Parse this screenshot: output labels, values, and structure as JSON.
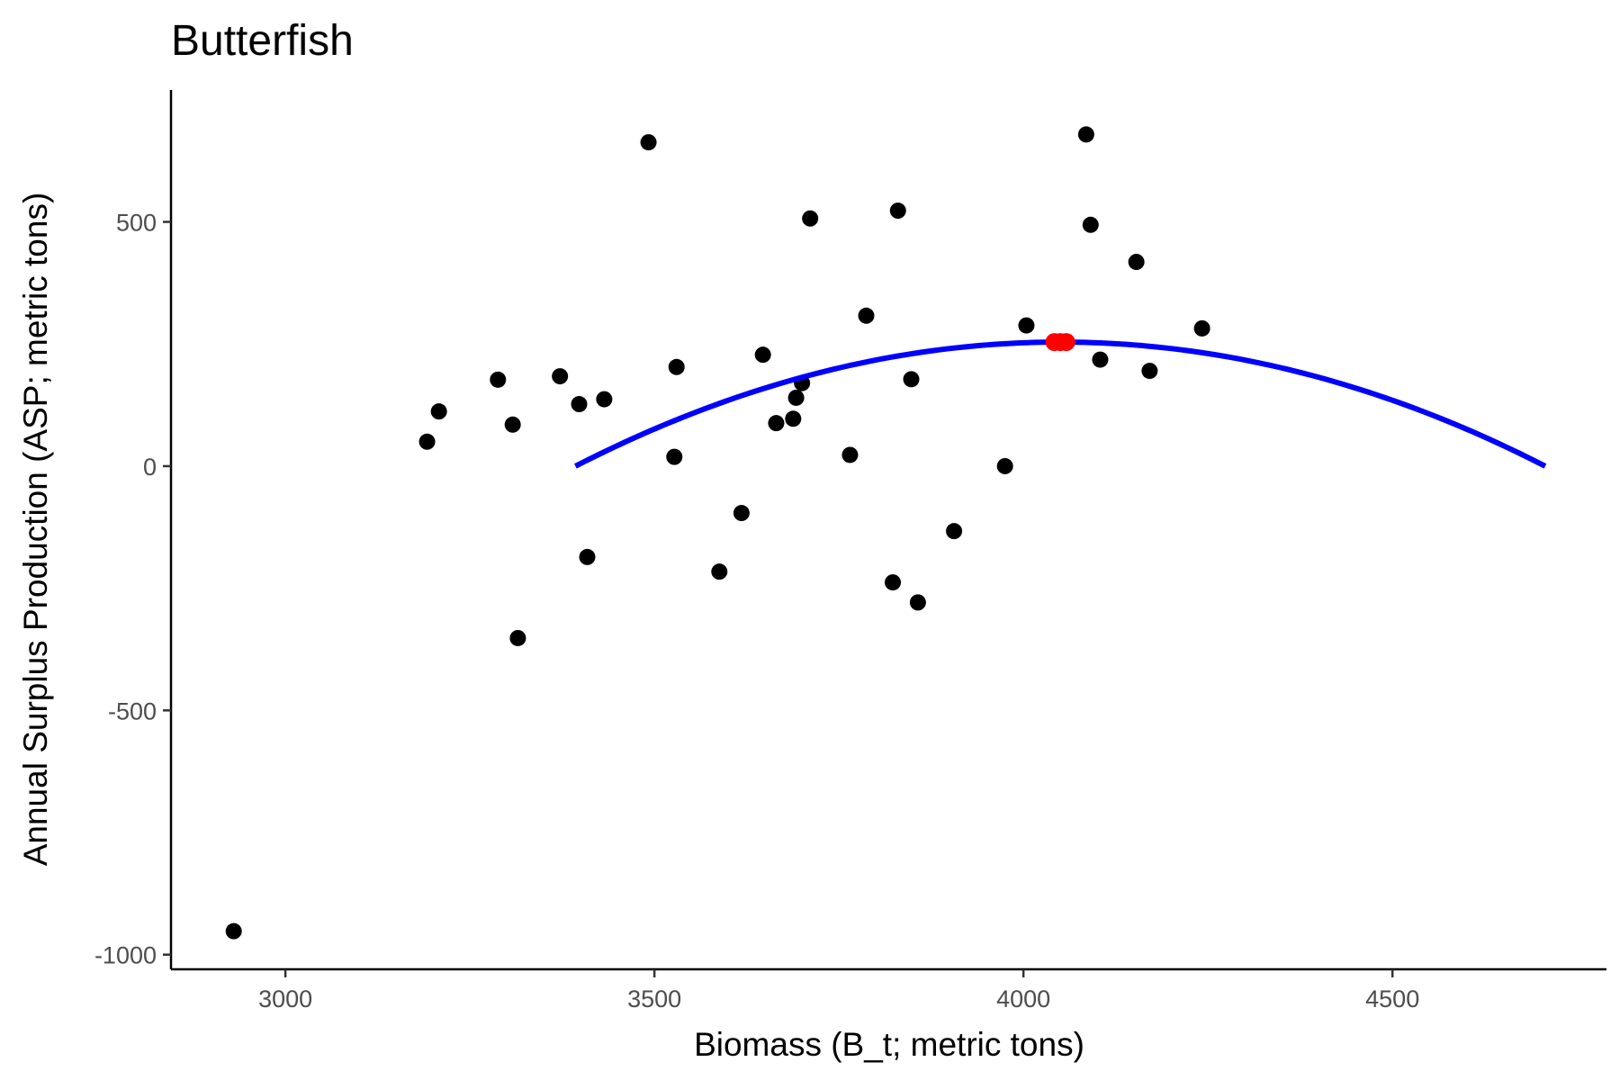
{
  "chart_data": {
    "type": "scatter",
    "title": "Butterfish",
    "xlabel": "Biomass (B_t; metric tons)",
    "ylabel": "Annual Surplus Production (ASP; metric tons)",
    "xlim": [
      2845,
      4790
    ],
    "ylim": [
      -1030,
      770
    ],
    "x_ticks": [
      3000,
      3500,
      4000,
      4500
    ],
    "y_ticks": [
      -1000,
      -500,
      0,
      500
    ],
    "x_tick_labels": [
      "3000",
      "3500",
      "4000",
      "4500"
    ],
    "y_tick_labels": [
      "-1000",
      "-500",
      "0",
      "500"
    ],
    "grid": false,
    "legend": "none",
    "series": [
      {
        "type": "scatter",
        "color": "#000000",
        "points": [
          {
            "x": 2930,
            "y": -952
          },
          {
            "x": 3192,
            "y": 50
          },
          {
            "x": 3208,
            "y": 112
          },
          {
            "x": 3288,
            "y": 177
          },
          {
            "x": 3308,
            "y": 85
          },
          {
            "x": 3315,
            "y": -352
          },
          {
            "x": 3372,
            "y": 184
          },
          {
            "x": 3398,
            "y": 127
          },
          {
            "x": 3409,
            "y": -186
          },
          {
            "x": 3432,
            "y": 137
          },
          {
            "x": 3492,
            "y": 663
          },
          {
            "x": 3527,
            "y": 19
          },
          {
            "x": 3530,
            "y": 203
          },
          {
            "x": 3588,
            "y": -216
          },
          {
            "x": 3618,
            "y": -96
          },
          {
            "x": 3647,
            "y": 228
          },
          {
            "x": 3665,
            "y": 88
          },
          {
            "x": 3688,
            "y": 97
          },
          {
            "x": 3692,
            "y": 140
          },
          {
            "x": 3700,
            "y": 170
          },
          {
            "x": 3711,
            "y": 507
          },
          {
            "x": 3765,
            "y": 23
          },
          {
            "x": 3787,
            "y": 308
          },
          {
            "x": 3823,
            "y": -238
          },
          {
            "x": 3830,
            "y": 523
          },
          {
            "x": 3848,
            "y": 178
          },
          {
            "x": 3857,
            "y": -279
          },
          {
            "x": 3906,
            "y": -133
          },
          {
            "x": 3975,
            "y": 0
          },
          {
            "x": 4004,
            "y": 288
          },
          {
            "x": 4085,
            "y": 679
          },
          {
            "x": 4091,
            "y": 494
          },
          {
            "x": 4104,
            "y": 218
          },
          {
            "x": 4153,
            "y": 418
          },
          {
            "x": 4171,
            "y": 195
          },
          {
            "x": 4242,
            "y": 282
          }
        ]
      },
      {
        "type": "curve",
        "color": "#0000ff",
        "function": "y = 254 * (1 - ((x - 4050) / 657)^2)",
        "x_range": [
          3393,
          4707
        ]
      },
      {
        "type": "scatter",
        "color": "#ff0000",
        "points": [
          {
            "x": 4042,
            "y": 254
          },
          {
            "x": 4050,
            "y": 254
          },
          {
            "x": 4058,
            "y": 254
          }
        ]
      }
    ]
  }
}
